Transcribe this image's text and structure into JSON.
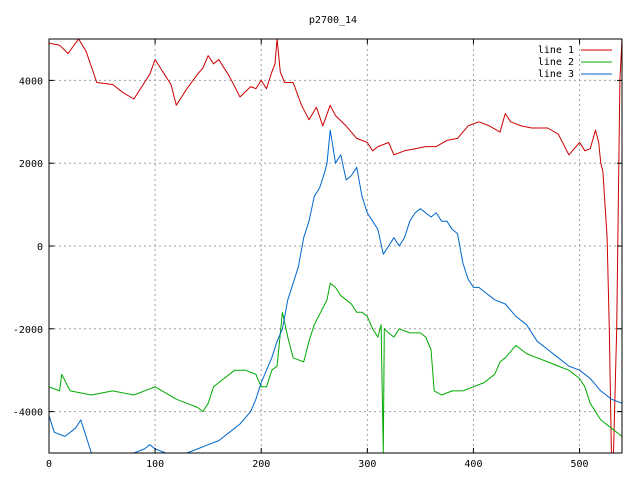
{
  "chart_data": {
    "type": "line",
    "title": "p2700_14",
    "xlim": [
      0,
      540
    ],
    "ylim": [
      -5000,
      5000
    ],
    "x_ticks": [
      0,
      100,
      200,
      300,
      400,
      500
    ],
    "y_ticks": [
      -4000,
      -2000,
      0,
      2000,
      4000
    ],
    "grid": true,
    "legend_position": "top-right",
    "series": [
      {
        "name": "line 1",
        "color": "#cc0000",
        "points": [
          [
            0,
            4900
          ],
          [
            10,
            4850
          ],
          [
            18,
            4650
          ],
          [
            25,
            4900
          ],
          [
            28,
            5000
          ],
          [
            35,
            4700
          ],
          [
            45,
            3950
          ],
          [
            60,
            3900
          ],
          [
            70,
            3700
          ],
          [
            80,
            3550
          ],
          [
            90,
            3950
          ],
          [
            95,
            4150
          ],
          [
            100,
            4500
          ],
          [
            105,
            4300
          ],
          [
            110,
            4100
          ],
          [
            115,
            3900
          ],
          [
            120,
            3400
          ],
          [
            125,
            3600
          ],
          [
            130,
            3800
          ],
          [
            140,
            4150
          ],
          [
            145,
            4300
          ],
          [
            150,
            4600
          ],
          [
            155,
            4400
          ],
          [
            160,
            4500
          ],
          [
            170,
            4100
          ],
          [
            180,
            3600
          ],
          [
            190,
            3850
          ],
          [
            195,
            3800
          ],
          [
            200,
            4000
          ],
          [
            205,
            3800
          ],
          [
            210,
            4200
          ],
          [
            213,
            4400
          ],
          [
            215,
            5000
          ],
          [
            218,
            4200
          ],
          [
            222,
            3950
          ],
          [
            230,
            3950
          ],
          [
            238,
            3400
          ],
          [
            245,
            3050
          ],
          [
            252,
            3350
          ],
          [
            258,
            2900
          ],
          [
            265,
            3400
          ],
          [
            270,
            3150
          ],
          [
            280,
            2900
          ],
          [
            290,
            2600
          ],
          [
            300,
            2500
          ],
          [
            305,
            2300
          ],
          [
            310,
            2400
          ],
          [
            320,
            2500
          ],
          [
            325,
            2200
          ],
          [
            335,
            2300
          ],
          [
            345,
            2350
          ],
          [
            355,
            2400
          ],
          [
            365,
            2400
          ],
          [
            375,
            2550
          ],
          [
            385,
            2600
          ],
          [
            395,
            2900
          ],
          [
            405,
            3000
          ],
          [
            415,
            2900
          ],
          [
            425,
            2750
          ],
          [
            430,
            3200
          ],
          [
            435,
            3000
          ],
          [
            445,
            2900
          ],
          [
            455,
            2850
          ],
          [
            470,
            2850
          ],
          [
            480,
            2700
          ],
          [
            490,
            2200
          ],
          [
            495,
            2350
          ],
          [
            500,
            2500
          ],
          [
            505,
            2300
          ],
          [
            510,
            2350
          ],
          [
            515,
            2800
          ],
          [
            518,
            2500
          ],
          [
            520,
            2000
          ],
          [
            522,
            1800
          ],
          [
            524,
            1000
          ],
          [
            526,
            200
          ],
          [
            528,
            -2000
          ],
          [
            530,
            -5000
          ],
          [
            532,
            -5000
          ],
          [
            535,
            -2000
          ],
          [
            538,
            4000
          ],
          [
            540,
            5000
          ]
        ]
      },
      {
        "name": "line 2",
        "color": "#00aa00",
        "points": [
          [
            0,
            -3400
          ],
          [
            10,
            -3500
          ],
          [
            12,
            -3100
          ],
          [
            20,
            -3500
          ],
          [
            40,
            -3600
          ],
          [
            60,
            -3500
          ],
          [
            80,
            -3600
          ],
          [
            100,
            -3400
          ],
          [
            120,
            -3700
          ],
          [
            130,
            -3800
          ],
          [
            140,
            -3900
          ],
          [
            145,
            -4000
          ],
          [
            150,
            -3800
          ],
          [
            155,
            -3400
          ],
          [
            165,
            -3200
          ],
          [
            175,
            -3000
          ],
          [
            185,
            -3000
          ],
          [
            195,
            -3100
          ],
          [
            200,
            -3400
          ],
          [
            205,
            -3400
          ],
          [
            210,
            -3000
          ],
          [
            215,
            -2900
          ],
          [
            220,
            -1600
          ],
          [
            225,
            -2200
          ],
          [
            230,
            -2700
          ],
          [
            240,
            -2800
          ],
          [
            245,
            -2300
          ],
          [
            250,
            -1900
          ],
          [
            258,
            -1500
          ],
          [
            262,
            -1300
          ],
          [
            265,
            -900
          ],
          [
            270,
            -1000
          ],
          [
            275,
            -1200
          ],
          [
            280,
            -1300
          ],
          [
            285,
            -1400
          ],
          [
            290,
            -1600
          ],
          [
            295,
            -1600
          ],
          [
            300,
            -1700
          ],
          [
            305,
            -2000
          ],
          [
            310,
            -2200
          ],
          [
            313,
            -1900
          ],
          [
            315,
            -5000
          ],
          [
            316,
            -2000
          ],
          [
            320,
            -2100
          ],
          [
            325,
            -2200
          ],
          [
            330,
            -2000
          ],
          [
            340,
            -2100
          ],
          [
            350,
            -2100
          ],
          [
            355,
            -2200
          ],
          [
            360,
            -2500
          ],
          [
            363,
            -3500
          ],
          [
            370,
            -3600
          ],
          [
            380,
            -3500
          ],
          [
            390,
            -3500
          ],
          [
            400,
            -3400
          ],
          [
            410,
            -3300
          ],
          [
            420,
            -3100
          ],
          [
            425,
            -2800
          ],
          [
            430,
            -2700
          ],
          [
            440,
            -2400
          ],
          [
            445,
            -2500
          ],
          [
            450,
            -2600
          ],
          [
            460,
            -2700
          ],
          [
            470,
            -2800
          ],
          [
            480,
            -2900
          ],
          [
            490,
            -3000
          ],
          [
            500,
            -3200
          ],
          [
            505,
            -3400
          ],
          [
            510,
            -3800
          ],
          [
            520,
            -4200
          ],
          [
            530,
            -4400
          ],
          [
            540,
            -4600
          ]
        ]
      },
      {
        "name": "line 3",
        "color": "#0066cc",
        "points": [
          [
            0,
            -4100
          ],
          [
            5,
            -4500
          ],
          [
            15,
            -4600
          ],
          [
            25,
            -4400
          ],
          [
            30,
            -4200
          ],
          [
            40,
            -5000
          ],
          [
            60,
            -5000
          ],
          [
            70,
            -5000
          ],
          [
            80,
            -5000
          ],
          [
            90,
            -4900
          ],
          [
            95,
            -4800
          ],
          [
            100,
            -4900
          ],
          [
            110,
            -5000
          ],
          [
            130,
            -5000
          ],
          [
            140,
            -4900
          ],
          [
            150,
            -4800
          ],
          [
            160,
            -4700
          ],
          [
            170,
            -4500
          ],
          [
            180,
            -4300
          ],
          [
            190,
            -4000
          ],
          [
            195,
            -3700
          ],
          [
            200,
            -3300
          ],
          [
            205,
            -3000
          ],
          [
            210,
            -2700
          ],
          [
            215,
            -2300
          ],
          [
            220,
            -2000
          ],
          [
            225,
            -1300
          ],
          [
            230,
            -900
          ],
          [
            235,
            -500
          ],
          [
            240,
            200
          ],
          [
            245,
            600
          ],
          [
            250,
            1200
          ],
          [
            255,
            1400
          ],
          [
            260,
            1800
          ],
          [
            262,
            2000
          ],
          [
            265,
            2800
          ],
          [
            270,
            2000
          ],
          [
            275,
            2200
          ],
          [
            280,
            1600
          ],
          [
            285,
            1700
          ],
          [
            290,
            1900
          ],
          [
            295,
            1200
          ],
          [
            300,
            800
          ],
          [
            305,
            600
          ],
          [
            310,
            400
          ],
          [
            315,
            -200
          ],
          [
            320,
            0
          ],
          [
            325,
            200
          ],
          [
            330,
            0
          ],
          [
            335,
            200
          ],
          [
            340,
            600
          ],
          [
            345,
            800
          ],
          [
            350,
            900
          ],
          [
            355,
            800
          ],
          [
            360,
            700
          ],
          [
            365,
            800
          ],
          [
            370,
            600
          ],
          [
            375,
            600
          ],
          [
            380,
            400
          ],
          [
            385,
            300
          ],
          [
            390,
            -400
          ],
          [
            395,
            -800
          ],
          [
            400,
            -1000
          ],
          [
            405,
            -1000
          ],
          [
            410,
            -1100
          ],
          [
            420,
            -1300
          ],
          [
            430,
            -1400
          ],
          [
            440,
            -1700
          ],
          [
            450,
            -1900
          ],
          [
            460,
            -2300
          ],
          [
            470,
            -2500
          ],
          [
            480,
            -2700
          ],
          [
            490,
            -2900
          ],
          [
            500,
            -3000
          ],
          [
            510,
            -3200
          ],
          [
            520,
            -3500
          ],
          [
            530,
            -3700
          ],
          [
            540,
            -3800
          ]
        ]
      }
    ]
  }
}
